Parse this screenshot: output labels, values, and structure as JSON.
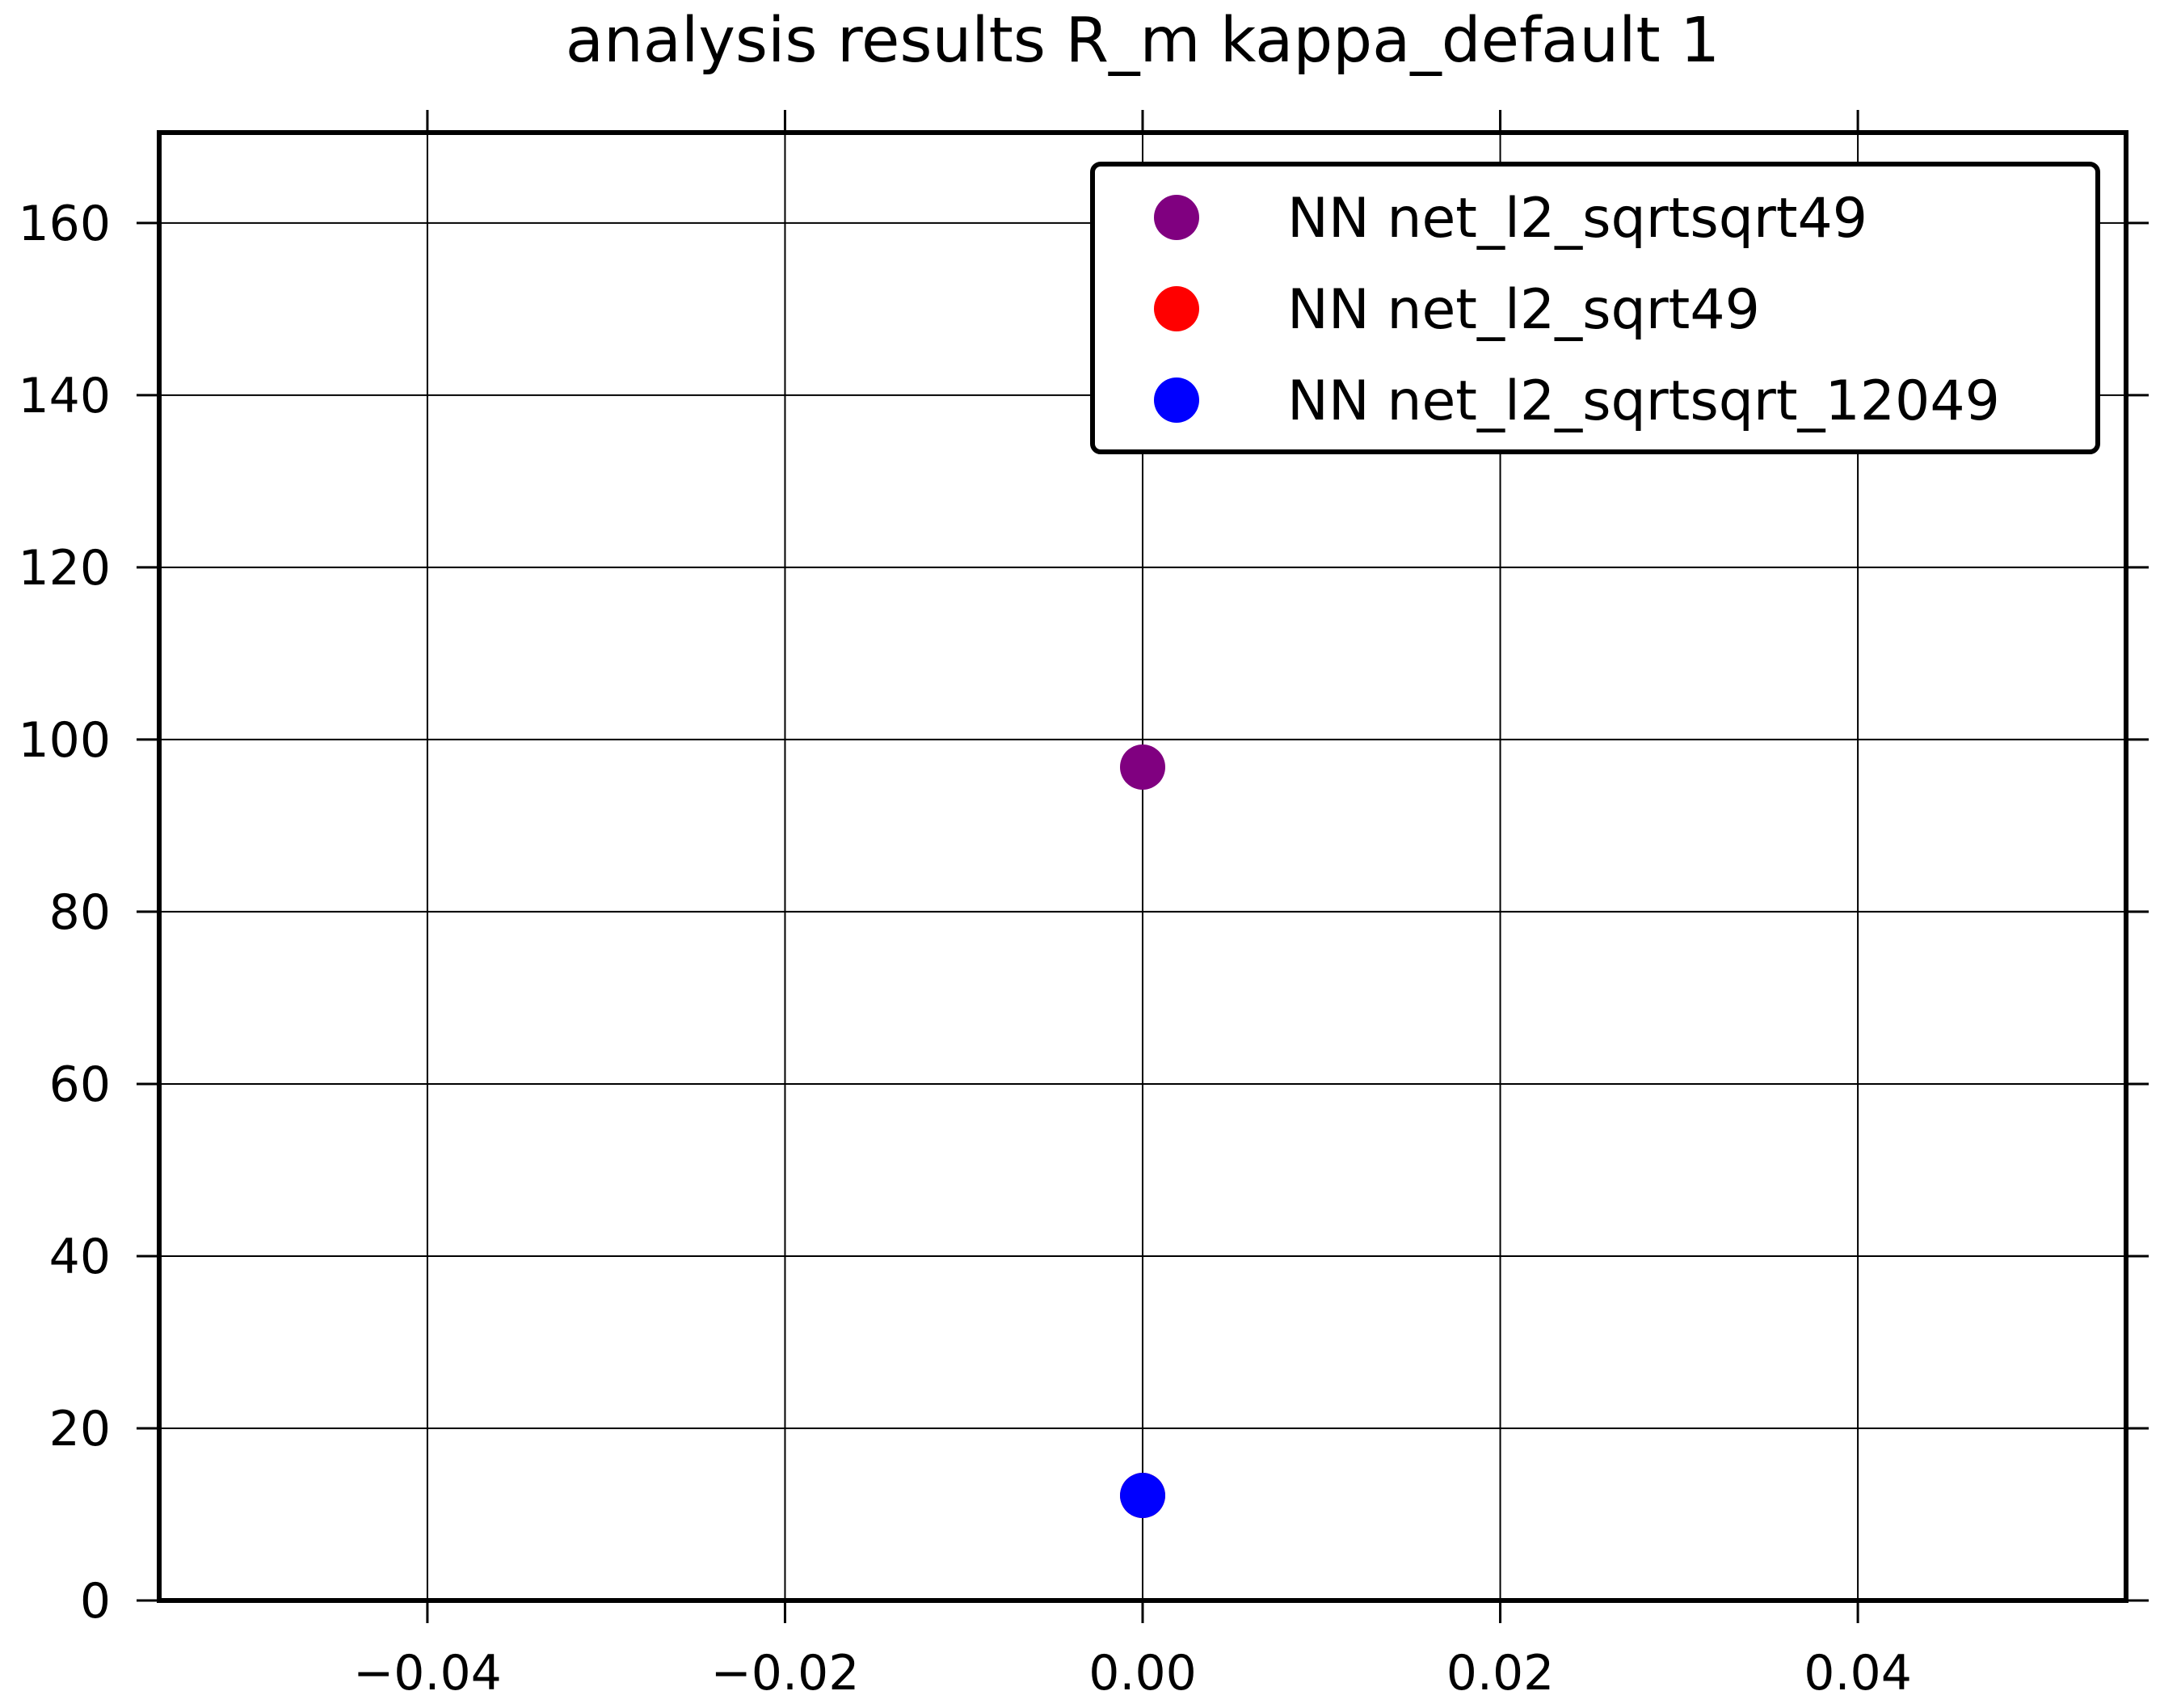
{
  "chart_data": {
    "type": "scatter",
    "title": "analysis results R_m  kappa_default 1",
    "xlabel": "",
    "ylabel": "",
    "xlim": [
      -0.055,
      0.055
    ],
    "ylim": [
      0,
      170.5
    ],
    "x_ticks": [
      -0.04,
      -0.02,
      0.0,
      0.02,
      0.04
    ],
    "x_tick_labels": [
      "−0.04",
      "−0.02",
      "0.00",
      "0.02",
      "0.04"
    ],
    "y_ticks": [
      0,
      20,
      40,
      60,
      80,
      100,
      120,
      140,
      160
    ],
    "y_tick_labels": [
      "0",
      "20",
      "40",
      "60",
      "80",
      "100",
      "120",
      "140",
      "160"
    ],
    "grid": true,
    "legend_position": "top-right",
    "series": [
      {
        "name": "NN net_l2_sqrtsqrt49",
        "color": "#800080",
        "points": [
          {
            "x": 0.0,
            "y": 96.8
          }
        ]
      },
      {
        "name": "NN net_l2_sqrt49",
        "color": "#ff0000",
        "points": [
          {
            "x": 0.0,
            "y": 12.2
          }
        ]
      },
      {
        "name": "NN net_l2_sqrtsqrt_12049",
        "color": "#0000ff",
        "points": [
          {
            "x": 0.0,
            "y": 12.2
          }
        ]
      }
    ]
  }
}
